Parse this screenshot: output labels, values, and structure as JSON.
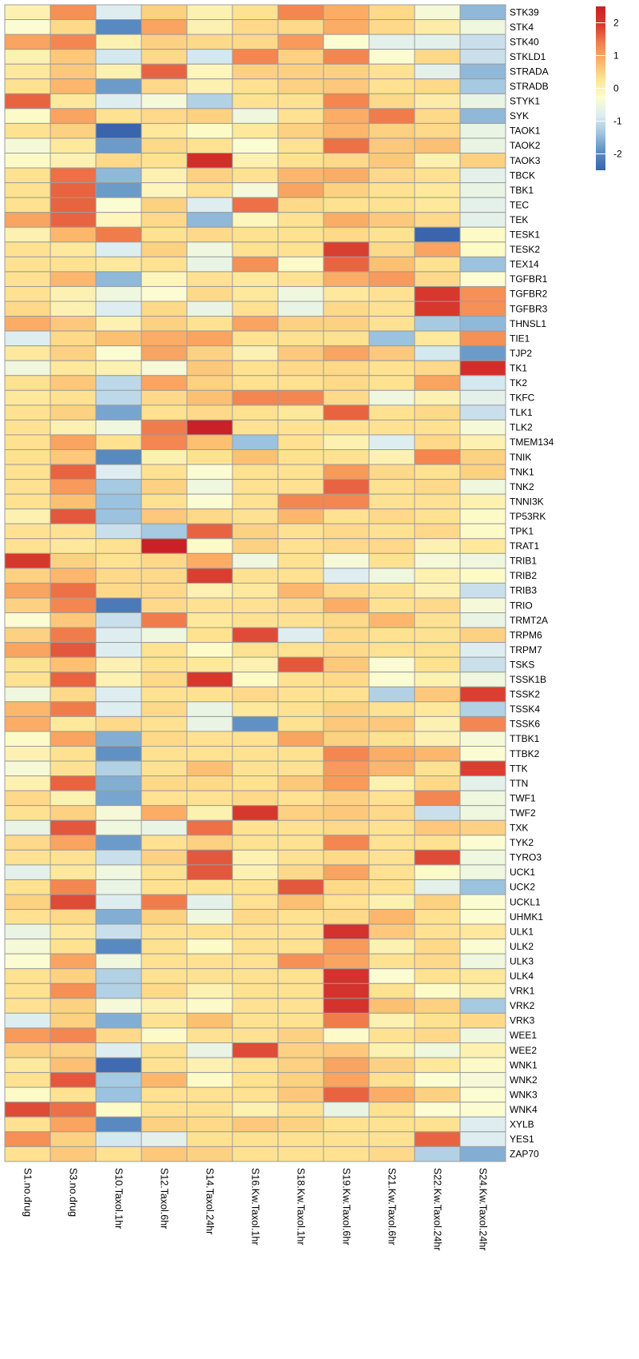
{
  "colors": {
    "palette": [
      "#3A64AC",
      "#5B8DC3",
      "#9CC3DF",
      "#DCEDF2",
      "#FCFDD0",
      "#FEE493",
      "#FCB469",
      "#F27D4C",
      "#D73A2F",
      "#C92125"
    ],
    "cell_border": "#9C9C9C"
  },
  "chart_data": {
    "type": "heatmap",
    "title": "",
    "xlabel": "",
    "ylabel": "",
    "columns": [
      "S1.no.drug",
      "S3.no.drug",
      "S10.Taxol.1hr",
      "S12.Taxol.6hr",
      "S14.Taxol.24hr",
      "S16.Kw.Taxol.1hr",
      "S18.Kw.Taxol.1hr",
      "S19.Kw.Taxol.6hr",
      "S21.Kw.Taxol.6hr",
      "S22.Kw.Taxol.24hr",
      "S24.Kw.Taxol.24hr"
    ],
    "rows": [
      "STK39",
      "STK4",
      "STK40",
      "STKLD1",
      "STRADA",
      "STRADB",
      "STYK1",
      "SYK",
      "TAOK1",
      "TAOK2",
      "TAOK3",
      "TBCK",
      "TBK1",
      "TEC",
      "TEK",
      "TESK1",
      "TESK2",
      "TEX14",
      "TGFBR1",
      "TGFBR2",
      "TGFBR3",
      "THNSL1",
      "TIE1",
      "TJP2",
      "TK1",
      "TK2",
      "TKFC",
      "TLK1",
      "TLK2",
      "TMEM134",
      "TNIK",
      "TNK1",
      "TNK2",
      "TNNI3K",
      "TP53RK",
      "TPK1",
      "TRAT1",
      "TRIB1",
      "TRIB2",
      "TRIB3",
      "TRIO",
      "TRMT2A",
      "TRPM6",
      "TRPM7",
      "TSKS",
      "TSSK1B",
      "TSSK2",
      "TSSK4",
      "TSSK6",
      "TTBK1",
      "TTBK2",
      "TTK",
      "TTN",
      "TWF1",
      "TWF2",
      "TXK",
      "TYK2",
      "TYRO3",
      "UCK1",
      "UCK2",
      "UCKL1",
      "UHMK1",
      "ULK1",
      "ULK2",
      "ULK3",
      "ULK4",
      "VRK1",
      "VRK2",
      "VRK3",
      "WEE1",
      "WEE2",
      "WNK1",
      "WNK2",
      "WNK3",
      "WNK4",
      "XYLB",
      "YES1",
      "ZAP70"
    ],
    "values": [
      [
        0.0,
        1.2,
        -0.8,
        0.5,
        0.0,
        0.3,
        1.3,
        0.9,
        0.4,
        -0.4,
        -1.5
      ],
      [
        -0.3,
        0.4,
        -2.0,
        1.0,
        0.0,
        0.4,
        0.4,
        0.9,
        0.4,
        0.1,
        -0.5
      ],
      [
        1.0,
        1.3,
        0.0,
        0.5,
        0.4,
        0.4,
        1.1,
        -0.3,
        -0.7,
        -0.7,
        -1.0
      ],
      [
        0.0,
        0.6,
        -0.9,
        0.4,
        -0.9,
        1.3,
        0.5,
        1.3,
        -0.3,
        0.4,
        -1.0
      ],
      [
        0.2,
        0.6,
        0.0,
        1.6,
        -0.1,
        0.5,
        0.5,
        0.5,
        0.3,
        -0.7,
        -1.5
      ],
      [
        0.3,
        0.8,
        -1.8,
        0.4,
        0.0,
        0.3,
        0.5,
        0.6,
        0.3,
        0.4,
        -1.3
      ],
      [
        1.6,
        0.2,
        -0.8,
        -0.4,
        -1.2,
        0.3,
        0.3,
        1.3,
        0.4,
        0.1,
        -0.6
      ],
      [
        -0.2,
        1.0,
        0.3,
        0.4,
        0.5,
        -0.5,
        0.3,
        0.9,
        1.4,
        0.4,
        -1.5
      ],
      [
        0.3,
        0.5,
        -2.5,
        0.2,
        -0.2,
        0.2,
        0.5,
        0.8,
        0.5,
        0.4,
        -0.6
      ],
      [
        -0.4,
        0.2,
        -1.8,
        0.4,
        0.3,
        -0.3,
        0.3,
        1.5,
        0.6,
        0.7,
        -0.6
      ],
      [
        -0.2,
        0.0,
        0.4,
        0.3,
        2.2,
        0.0,
        0.3,
        0.4,
        0.6,
        0.0,
        0.5
      ],
      [
        0.3,
        1.5,
        -1.5,
        0.0,
        0.5,
        0.3,
        0.8,
        0.9,
        0.4,
        0.3,
        -0.7
      ],
      [
        0.3,
        1.6,
        -1.8,
        -0.1,
        0.3,
        -0.4,
        1.0,
        0.5,
        0.3,
        0.2,
        -0.6
      ],
      [
        0.3,
        1.6,
        -0.3,
        0.5,
        -0.8,
        1.5,
        0.4,
        0.3,
        0.3,
        0.2,
        -0.7
      ],
      [
        1.0,
        1.6,
        -0.1,
        0.4,
        -1.5,
        -0.1,
        0.3,
        0.9,
        0.6,
        0.4,
        -0.7
      ],
      [
        0.0,
        0.8,
        1.4,
        0.3,
        0.4,
        0.3,
        0.3,
        0.4,
        0.3,
        -2.5,
        -0.2
      ],
      [
        0.3,
        0.2,
        -0.8,
        0.5,
        -0.5,
        0.3,
        0.3,
        1.9,
        0.4,
        1.0,
        -0.2
      ],
      [
        0.3,
        0.3,
        0.2,
        0.3,
        -0.6,
        1.2,
        -0.2,
        1.6,
        0.7,
        0.3,
        -1.4
      ],
      [
        0.3,
        0.8,
        -1.5,
        -0.1,
        0.3,
        0.2,
        0.3,
        0.9,
        1.1,
        0.4,
        -0.3
      ],
      [
        0.3,
        0.0,
        -0.5,
        -0.3,
        0.4,
        0.2,
        -0.5,
        0.2,
        0.3,
        2.0,
        1.2
      ],
      [
        0.4,
        0.0,
        -0.8,
        0.4,
        -0.6,
        0.3,
        -0.6,
        0.4,
        0.3,
        2.0,
        1.2
      ],
      [
        0.9,
        0.6,
        0.0,
        0.5,
        0.3,
        1.0,
        0.5,
        0.5,
        0.3,
        -1.3,
        -1.5
      ],
      [
        -0.8,
        0.4,
        0.7,
        0.9,
        1.0,
        0.3,
        0.3,
        0.3,
        -1.4,
        0.2,
        1.2
      ],
      [
        0.2,
        0.5,
        -0.3,
        1.0,
        0.5,
        0.0,
        0.6,
        1.0,
        0.6,
        -0.9,
        -1.8
      ],
      [
        -0.5,
        0.2,
        0.0,
        -0.4,
        0.6,
        0.3,
        0.4,
        0.4,
        0.3,
        0.4,
        2.2
      ],
      [
        0.3,
        0.6,
        -1.1,
        1.0,
        0.5,
        0.3,
        0.3,
        0.4,
        0.3,
        1.0,
        -0.9
      ],
      [
        0.2,
        0.3,
        -1.1,
        0.4,
        0.7,
        1.3,
        1.3,
        0.4,
        -0.5,
        0.0,
        -0.7
      ],
      [
        0.3,
        0.5,
        -1.7,
        0.3,
        0.4,
        0.3,
        0.2,
        1.6,
        0.3,
        0.4,
        -1.0
      ],
      [
        0.3,
        0.0,
        -0.5,
        1.4,
        2.6,
        0.3,
        0.3,
        0.3,
        0.3,
        0.3,
        -0.4
      ],
      [
        0.3,
        1.0,
        0.3,
        1.3,
        0.7,
        -1.4,
        0.3,
        0.0,
        -0.8,
        0.4,
        0.0
      ],
      [
        0.3,
        0.6,
        -2.0,
        0.0,
        0.3,
        0.7,
        0.3,
        0.3,
        0.0,
        1.3,
        0.5
      ],
      [
        0.3,
        1.6,
        -0.8,
        0.3,
        -0.3,
        0.3,
        0.3,
        1.1,
        0.4,
        0.3,
        0.5
      ],
      [
        0.3,
        1.1,
        -1.3,
        0.5,
        -0.5,
        0.3,
        0.3,
        1.6,
        0.3,
        0.4,
        -0.5
      ],
      [
        0.3,
        0.7,
        -1.4,
        0.3,
        -0.3,
        0.3,
        1.3,
        1.3,
        0.3,
        0.3,
        0.0
      ],
      [
        0.0,
        1.7,
        -1.4,
        0.6,
        0.4,
        0.3,
        0.8,
        0.3,
        0.4,
        0.3,
        -0.2
      ],
      [
        0.3,
        0.3,
        -1.0,
        -1.3,
        1.6,
        0.5,
        0.3,
        0.4,
        0.3,
        0.4,
        -0.2
      ],
      [
        0.3,
        0.2,
        0.3,
        2.6,
        -0.2,
        0.5,
        0.3,
        0.4,
        0.4,
        0.0,
        0.2
      ],
      [
        2.0,
        0.5,
        0.3,
        0.4,
        0.9,
        -0.5,
        0.3,
        -0.4,
        0.3,
        -0.4,
        -0.5
      ],
      [
        0.5,
        0.8,
        0.4,
        0.4,
        1.9,
        0.3,
        0.3,
        -0.8,
        -0.5,
        0.0,
        -0.2
      ],
      [
        1.0,
        1.5,
        0.4,
        0.4,
        0.0,
        0.2,
        0.8,
        0.4,
        0.3,
        0.0,
        -1.0
      ],
      [
        0.5,
        1.3,
        -2.2,
        0.4,
        0.3,
        0.3,
        0.4,
        0.9,
        0.3,
        0.4,
        -0.4
      ],
      [
        -0.3,
        0.6,
        -1.0,
        1.4,
        0.2,
        0.3,
        0.3,
        0.4,
        0.8,
        0.3,
        -0.6
      ],
      [
        0.5,
        1.4,
        -0.8,
        -0.5,
        0.3,
        1.8,
        -0.8,
        0.4,
        0.3,
        0.3,
        0.5
      ],
      [
        1.0,
        1.7,
        -0.8,
        0.3,
        -0.2,
        0.3,
        0.3,
        0.4,
        0.3,
        0.3,
        -0.8
      ],
      [
        0.3,
        0.7,
        0.0,
        0.3,
        0.2,
        0.0,
        1.7,
        0.6,
        -0.3,
        0.3,
        -1.0
      ],
      [
        0.3,
        1.6,
        0.0,
        0.4,
        2.0,
        -0.2,
        0.3,
        0.4,
        -0.3,
        0.0,
        -0.5
      ],
      [
        -0.5,
        0.4,
        -0.8,
        0.3,
        0.3,
        0.4,
        0.3,
        0.3,
        -1.2,
        0.6,
        1.9
      ],
      [
        0.8,
        1.4,
        -0.8,
        0.4,
        -0.6,
        0.2,
        0.3,
        0.5,
        0.3,
        0.2,
        -1.2
      ],
      [
        0.9,
        0.2,
        0.4,
        0.3,
        -0.6,
        -1.9,
        0.3,
        0.6,
        0.6,
        0.0,
        1.3
      ],
      [
        -0.2,
        1.0,
        -1.6,
        0.4,
        0.3,
        0.3,
        1.0,
        0.5,
        0.3,
        0.0,
        -0.4
      ],
      [
        0.0,
        0.3,
        -1.9,
        0.3,
        0.3,
        0.3,
        0.3,
        1.3,
        0.9,
        0.8,
        -0.3
      ],
      [
        -0.4,
        0.3,
        -1.2,
        0.3,
        0.7,
        0.3,
        0.3,
        1.1,
        0.8,
        0.3,
        1.9
      ],
      [
        0.0,
        1.6,
        -1.6,
        0.4,
        0.4,
        0.3,
        0.6,
        1.1,
        0.0,
        0.4,
        -0.7
      ],
      [
        0.4,
        0.0,
        -1.7,
        0.3,
        0.3,
        0.4,
        0.3,
        0.5,
        0.3,
        1.3,
        -0.5
      ],
      [
        0.3,
        0.5,
        -0.4,
        0.9,
        0.0,
        2.0,
        0.5,
        0.6,
        0.4,
        -1.0,
        -0.5
      ],
      [
        -0.6,
        1.7,
        -0.5,
        -0.6,
        1.5,
        0.3,
        0.3,
        0.4,
        0.3,
        0.6,
        0.5
      ],
      [
        0.4,
        1.0,
        -1.8,
        0.3,
        0.5,
        0.3,
        0.3,
        1.3,
        0.3,
        0.3,
        -0.3
      ],
      [
        0.3,
        0.3,
        -1.0,
        0.5,
        1.7,
        0.0,
        0.3,
        0.4,
        0.3,
        1.8,
        -0.5
      ],
      [
        -0.7,
        0.2,
        -0.5,
        0.3,
        1.7,
        0.0,
        0.4,
        1.0,
        0.3,
        -0.2,
        -0.5
      ],
      [
        0.3,
        1.3,
        -0.6,
        0.3,
        0.3,
        0.3,
        1.7,
        0.4,
        0.3,
        -0.7,
        -1.4
      ],
      [
        0.5,
        1.8,
        -0.8,
        1.4,
        -0.7,
        0.3,
        0.7,
        0.3,
        0.0,
        0.5,
        -0.3
      ],
      [
        0.3,
        0.4,
        -1.6,
        0.5,
        -0.5,
        0.4,
        0.3,
        0.4,
        0.8,
        0.3,
        -0.3
      ],
      [
        -0.6,
        0.2,
        -1.0,
        0.3,
        0.3,
        0.3,
        0.3,
        2.1,
        0.6,
        0.3,
        0.2
      ],
      [
        -0.4,
        0.3,
        -2.0,
        0.3,
        -0.2,
        0.3,
        0.3,
        1.1,
        0.0,
        0.4,
        -0.3
      ],
      [
        -0.3,
        1.0,
        -0.5,
        0.3,
        0.3,
        0.3,
        1.2,
        1.0,
        0.3,
        0.4,
        -0.5
      ],
      [
        0.3,
        0.5,
        -1.2,
        0.3,
        0.3,
        0.3,
        0.3,
        2.1,
        -0.3,
        0.3,
        0.2
      ],
      [
        0.3,
        1.2,
        -1.2,
        0.4,
        0.0,
        0.3,
        0.3,
        2.1,
        0.3,
        -0.2,
        0.0
      ],
      [
        0.3,
        0.5,
        -0.4,
        0.0,
        -0.2,
        0.3,
        0.3,
        2.1,
        0.7,
        0.5,
        -1.3
      ],
      [
        -0.8,
        0.5,
        -1.6,
        0.3,
        0.7,
        0.3,
        0.3,
        1.4,
        0.0,
        0.3,
        0.4
      ],
      [
        1.1,
        1.3,
        0.4,
        -0.2,
        0.3,
        0.3,
        0.5,
        -0.2,
        0.3,
        0.4,
        -0.5
      ],
      [
        0.5,
        0.5,
        -0.8,
        0.3,
        -0.6,
        1.8,
        0.5,
        0.6,
        0.0,
        -0.5,
        0.0
      ],
      [
        0.2,
        0.7,
        -2.4,
        0.3,
        0.0,
        0.3,
        0.5,
        1.0,
        0.5,
        0.2,
        -0.2
      ],
      [
        0.3,
        1.7,
        -1.3,
        0.8,
        -0.2,
        0.3,
        0.5,
        1.0,
        0.3,
        -0.3,
        -0.4
      ],
      [
        -0.2,
        0.3,
        -1.4,
        0.3,
        0.3,
        0.3,
        0.6,
        1.6,
        0.9,
        0.5,
        -0.3
      ],
      [
        1.8,
        1.5,
        -0.2,
        0.3,
        0.3,
        0.0,
        0.3,
        -0.6,
        0.3,
        -0.3,
        -0.3
      ],
      [
        0.3,
        1.0,
        -2.0,
        0.5,
        0.4,
        0.6,
        0.5,
        0.3,
        0.3,
        0.3,
        -0.8
      ],
      [
        1.2,
        0.5,
        -0.9,
        -0.7,
        0.3,
        0.3,
        0.3,
        0.3,
        0.3,
        1.6,
        -0.8
      ],
      [
        0.3,
        0.6,
        0.3,
        0.6,
        0.5,
        0.3,
        0.3,
        0.3,
        0.4,
        -1.2,
        -1.6
      ]
    ],
    "color_scale": {
      "min": -2.5,
      "max": 2.5,
      "ticks": [
        2,
        1,
        0,
        -1,
        -2
      ]
    }
  }
}
